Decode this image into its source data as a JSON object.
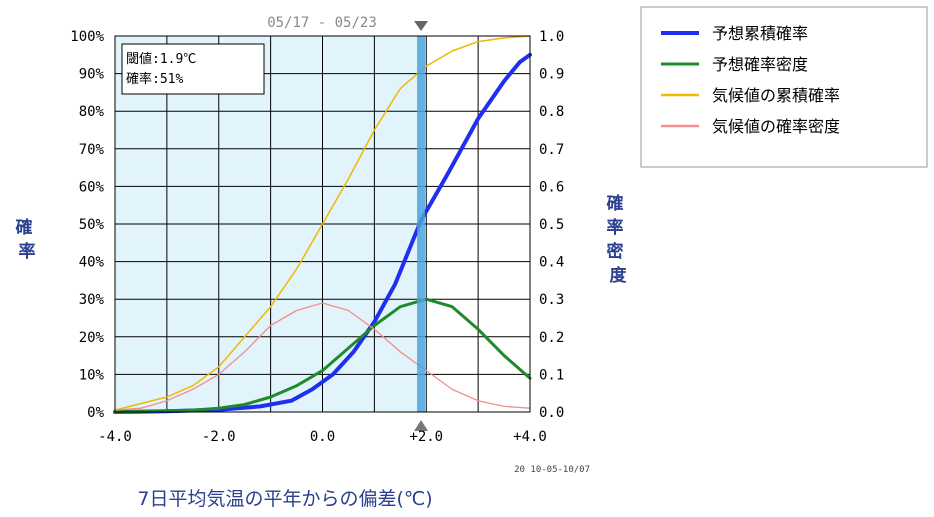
{
  "period": "05/17 - 05/23",
  "stamp": "20 10-05-10/07",
  "info": {
    "threshold": "閾値:1.9℃",
    "probability": "確率:51%"
  },
  "y_left_label": "確率",
  "y_right_label": "確率密度",
  "chart_data": {
    "type": "line",
    "xlabel": "7日平均気温の平年からの偏差(℃)",
    "ylabel": "確率",
    "ylabel_right": "確率密度",
    "xlim": [
      -4.0,
      4.0
    ],
    "ylim": [
      0,
      100
    ],
    "ylim_right": [
      0.0,
      1.0
    ],
    "x_ticks": [
      "-4.0",
      "-2.0",
      "0.0",
      "+2.0",
      "+4.0"
    ],
    "y_ticks_left": [
      "0%",
      "10%",
      "20%",
      "30%",
      "40%",
      "50%",
      "60%",
      "70%",
      "80%",
      "90%",
      "100%"
    ],
    "y_ticks_right": [
      "0.0",
      "0.1",
      "0.2",
      "0.3",
      "0.4",
      "0.5",
      "0.6",
      "0.7",
      "0.8",
      "0.9",
      "1.0"
    ],
    "grid": true,
    "threshold_x": 1.9,
    "shaded_range": [
      -4.0,
      1.9
    ],
    "legend_position": "top-right",
    "colors": {
      "plot_bg": "#ffffff",
      "shade": "#e2f4fb",
      "threshold": "#4aa3dc",
      "grid": "#000000"
    },
    "series": [
      {
        "name": "予想累積確率",
        "color": "#1f2ff0",
        "width": 4,
        "points": [
          [
            -4.0,
            0
          ],
          [
            -3.0,
            0.2
          ],
          [
            -2.0,
            0.6
          ],
          [
            -1.2,
            1.5
          ],
          [
            -0.6,
            3
          ],
          [
            -0.2,
            6
          ],
          [
            0.2,
            10
          ],
          [
            0.6,
            16
          ],
          [
            1.0,
            24
          ],
          [
            1.4,
            34
          ],
          [
            1.9,
            51
          ],
          [
            2.4,
            63
          ],
          [
            3.0,
            78
          ],
          [
            3.5,
            88
          ],
          [
            3.8,
            93
          ],
          [
            4.0,
            95
          ]
        ]
      },
      {
        "name": "予想確率密度",
        "color": "#1f8a2a",
        "width": 3,
        "points": [
          [
            -4.0,
            0.0
          ],
          [
            -2.5,
            0.005
          ],
          [
            -2.0,
            0.01
          ],
          [
            -1.5,
            0.02
          ],
          [
            -1.0,
            0.04
          ],
          [
            -0.5,
            0.07
          ],
          [
            0.0,
            0.11
          ],
          [
            0.5,
            0.17
          ],
          [
            1.0,
            0.23
          ],
          [
            1.5,
            0.28
          ],
          [
            2.0,
            0.3
          ],
          [
            2.5,
            0.28
          ],
          [
            3.0,
            0.22
          ],
          [
            3.5,
            0.15
          ],
          [
            4.0,
            0.09
          ]
        ]
      },
      {
        "name": "気候値の累積確率",
        "color": "#f0b800",
        "width": 1.5,
        "points": [
          [
            -4.0,
            0.5
          ],
          [
            -3.0,
            4
          ],
          [
            -2.5,
            7
          ],
          [
            -2.0,
            12
          ],
          [
            -1.5,
            20
          ],
          [
            -1.0,
            28
          ],
          [
            -0.5,
            38
          ],
          [
            0.0,
            50
          ],
          [
            0.5,
            62
          ],
          [
            1.0,
            75
          ],
          [
            1.5,
            86
          ],
          [
            2.0,
            92
          ],
          [
            2.5,
            96
          ],
          [
            3.0,
            98.5
          ],
          [
            3.5,
            99.5
          ],
          [
            4.0,
            100
          ]
        ]
      },
      {
        "name": "気候値の確率密度",
        "color": "#f28e8e",
        "width": 1.3,
        "points": [
          [
            -4.0,
            0.005
          ],
          [
            -3.5,
            0.01
          ],
          [
            -3.0,
            0.03
          ],
          [
            -2.5,
            0.06
          ],
          [
            -2.0,
            0.1
          ],
          [
            -1.5,
            0.16
          ],
          [
            -1.0,
            0.23
          ],
          [
            -0.5,
            0.27
          ],
          [
            0.0,
            0.29
          ],
          [
            0.5,
            0.27
          ],
          [
            1.0,
            0.22
          ],
          [
            1.5,
            0.16
          ],
          [
            2.0,
            0.11
          ],
          [
            2.5,
            0.06
          ],
          [
            3.0,
            0.03
          ],
          [
            3.5,
            0.015
          ],
          [
            4.0,
            0.01
          ]
        ]
      }
    ]
  }
}
